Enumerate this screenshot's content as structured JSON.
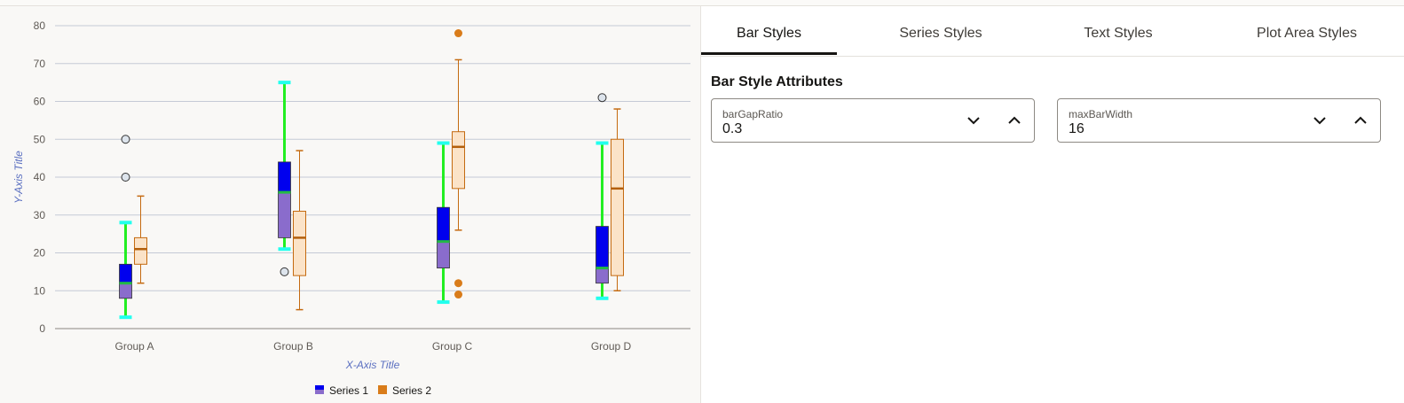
{
  "tabs": [
    {
      "label": "Bar Styles",
      "selected": true
    },
    {
      "label": "Series Styles",
      "selected": false
    },
    {
      "label": "Text Styles",
      "selected": false
    },
    {
      "label": "Plot Area Styles",
      "selected": false
    }
  ],
  "settings": {
    "section_title": "Bar Style Attributes",
    "fields": [
      {
        "label": "barGapRatio",
        "value": "0.3",
        "decrement_icon": "chevron-down-icon",
        "increment_icon": "chevron-up-icon"
      },
      {
        "label": "maxBarWidth",
        "value": "16",
        "decrement_icon": "chevron-down-icon",
        "increment_icon": "chevron-up-icon"
      }
    ]
  },
  "chart_data": {
    "type": "boxplot",
    "categories": [
      "Group A",
      "Group B",
      "Group C",
      "Group D"
    ],
    "xlabel": "X-Axis Title",
    "ylabel": "Y-Axis Title",
    "ylim": [
      0,
      80
    ],
    "yticks": [
      0,
      10,
      20,
      30,
      40,
      50,
      60,
      70,
      80
    ],
    "grid": true,
    "legend_position": "bottom",
    "series": [
      {
        "name": "Series 1",
        "colors": {
          "upper_box": "#0000ee",
          "lower_box": "#8a6ccc",
          "whisker": "#22ee22",
          "whisker_cap": "#22ffee",
          "median": "#22bb44",
          "outlier_stroke": "#333333",
          "outlier_fill": "#dde4ec"
        },
        "boxes": [
          {
            "min": 3,
            "q1": 8,
            "median": 12,
            "q3": 17,
            "max": 28,
            "outliers": [
              40,
              50
            ]
          },
          {
            "min": 21,
            "q1": 24,
            "median": 36,
            "q3": 44,
            "max": 65,
            "outliers": [
              15
            ]
          },
          {
            "min": 7,
            "q1": 16,
            "median": 23,
            "q3": 32,
            "max": 49,
            "outliers": []
          },
          {
            "min": 8,
            "q1": 12,
            "median": 16,
            "q3": 27,
            "max": 49,
            "outliers": [
              61
            ]
          }
        ]
      },
      {
        "name": "Series 2",
        "colors": {
          "box_fill": "#fbe3c8",
          "stroke": "#c46a10",
          "median": "#b35f0c",
          "outlier_fill": "#d97c1a"
        },
        "boxes": [
          {
            "min": 12,
            "q1": 17,
            "median": 21,
            "q3": 24,
            "max": 35,
            "outliers": []
          },
          {
            "min": 5,
            "q1": 14,
            "median": 24,
            "q3": 31,
            "max": 47,
            "outliers": []
          },
          {
            "min": 26,
            "q1": 37,
            "median": 48,
            "q3": 52,
            "max": 71,
            "outliers": [
              9,
              12,
              78
            ]
          },
          {
            "min": 10,
            "q1": 14,
            "median": 37,
            "q3": 50,
            "max": 58,
            "outliers": []
          }
        ]
      }
    ],
    "colors": {
      "axis_title": "#5a6fc0",
      "tick_label": "#5f5a55",
      "grid": "#c5cad6",
      "axis_line": "#8a8680"
    }
  }
}
